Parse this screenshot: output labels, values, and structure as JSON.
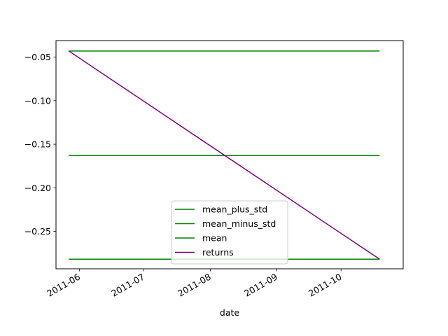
{
  "chart_data": {
    "type": "line",
    "xlabel": "date",
    "ylabel": "",
    "x_is_date": true,
    "xlim": [
      "2011-05-21",
      "2011-10-30"
    ],
    "ylim": [
      -0.293,
      -0.031
    ],
    "yticks": [
      -0.25,
      -0.2,
      -0.15,
      -0.1,
      -0.05
    ],
    "ytick_labels": [
      "−0.25",
      "−0.20",
      "−0.15",
      "−0.10",
      "−0.05"
    ],
    "xticks": [
      "2011-06-01",
      "2011-07-01",
      "2011-08-01",
      "2011-09-01",
      "2011-10-01"
    ],
    "xtick_labels": [
      "2011-06",
      "2011-07",
      "2011-08",
      "2011-09",
      "2011-10"
    ],
    "grid": false,
    "legend_position": "lower center",
    "series": [
      {
        "name": "mean_plus_std",
        "color": "#008000",
        "x": [
          "2011-05-27",
          "2011-10-19"
        ],
        "y": [
          -0.043,
          -0.043
        ]
      },
      {
        "name": "mean_minus_std",
        "color": "#008000",
        "x": [
          "2011-05-27",
          "2011-10-19"
        ],
        "y": [
          -0.282,
          -0.282
        ]
      },
      {
        "name": "mean",
        "color": "#008000",
        "x": [
          "2011-05-27",
          "2011-10-19"
        ],
        "y": [
          -0.163,
          -0.163
        ]
      },
      {
        "name": "returns",
        "color": "#800080",
        "x": [
          "2011-05-27",
          "2011-10-19"
        ],
        "y": [
          -0.043,
          -0.282
        ]
      }
    ]
  }
}
